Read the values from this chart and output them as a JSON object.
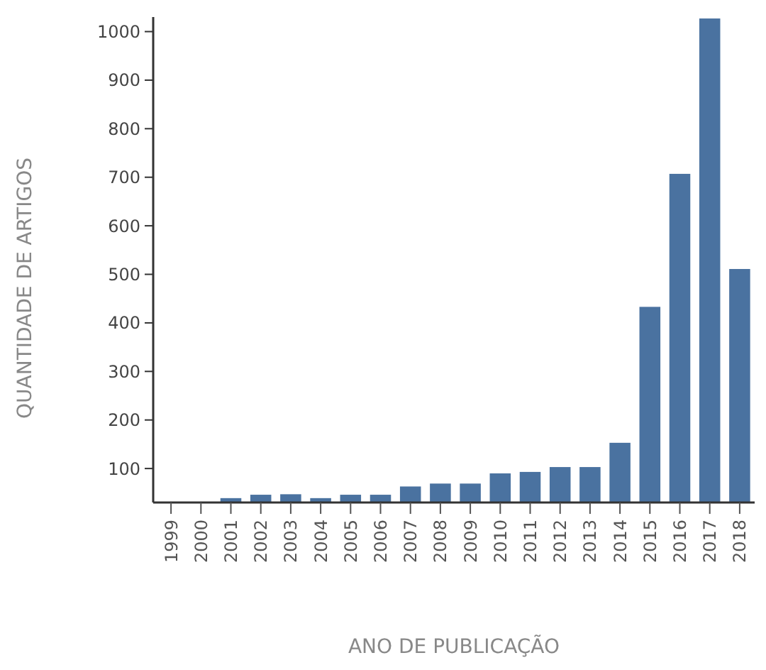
{
  "chart_data": {
    "type": "bar",
    "xlabel": "ANO DE PUBLICAÇÃO",
    "ylabel": "QUANTIDADE DE ARTIGOS",
    "categories": [
      "1999",
      "2000",
      "2001",
      "2002",
      "2003",
      "2004",
      "2005",
      "2006",
      "2007",
      "2008",
      "2009",
      "2010",
      "2011",
      "2012",
      "2013",
      "2014",
      "2015",
      "2016",
      "2017",
      "2018"
    ],
    "values": [
      null,
      null,
      39,
      46,
      47,
      39,
      46,
      46,
      63,
      69,
      69,
      90,
      93,
      103,
      103,
      153,
      433,
      707,
      1027,
      511
    ],
    "color": "#4a72a0",
    "ylim": [
      30,
      1030
    ],
    "yticks": [
      100,
      200,
      300,
      400,
      500,
      600,
      700,
      800,
      900,
      1000
    ],
    "grid": false
  }
}
